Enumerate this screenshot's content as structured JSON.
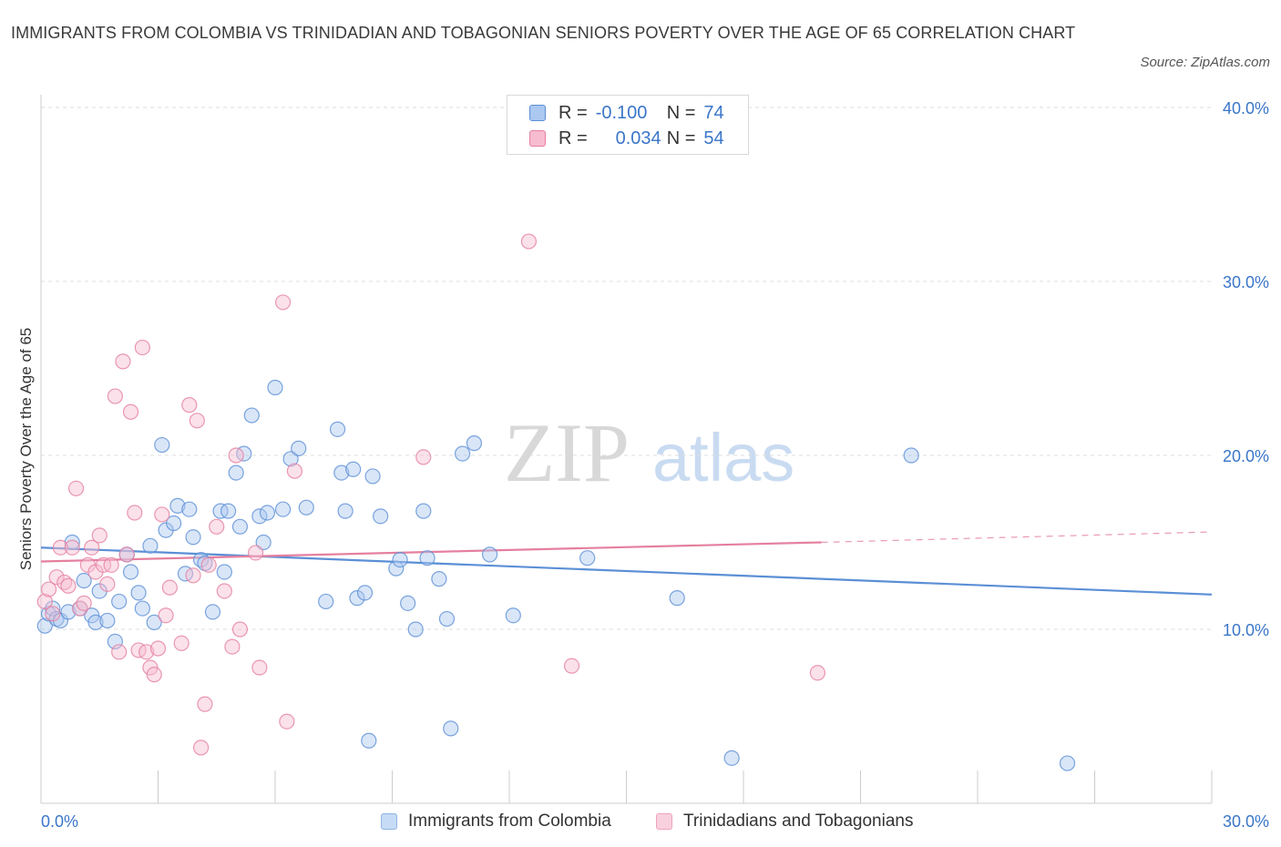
{
  "title": "IMMIGRANTS FROM COLOMBIA VS TRINIDADIAN AND TOBAGONIAN SENIORS POVERTY OVER THE AGE OF 65 CORRELATION CHART",
  "source": "Source: ZipAtlas.com",
  "watermark": {
    "zip": "ZIP",
    "atlas": "atlas"
  },
  "legend": {
    "r_label": "R =",
    "n_label": "N =",
    "series": [
      {
        "name": "Immigrants from Colombia",
        "r": "-0.100",
        "n": "74",
        "fill": "#aac8f0",
        "stroke": "#5b8fd6"
      },
      {
        "name": "Trinidadians and Tobagonians",
        "r": "0.034",
        "n": "54",
        "fill": "#f7bcd0",
        "stroke": "#e5809f"
      }
    ]
  },
  "chart_data": {
    "type": "scatter",
    "title": "IMMIGRANTS FROM COLOMBIA VS TRINIDADIAN AND TOBAGONIAN SENIORS POVERTY OVER THE AGE OF 65 CORRELATION CHART",
    "xlabel": "",
    "ylabel": "Seniors Poverty Over the Age of 65",
    "xlim": [
      0,
      30
    ],
    "ylim": [
      0,
      40
    ],
    "x_tick_labels": [
      "0.0%",
      "30.0%"
    ],
    "y_ticks": [
      10,
      20,
      30,
      40
    ],
    "y_tick_labels": [
      "10.0%",
      "20.0%",
      "30.0%",
      "40.0%"
    ],
    "grid": true,
    "legend_position": "top-center",
    "series": [
      {
        "name": "Immigrants from Colombia",
        "color": "#5b8fd6",
        "trend": {
          "x": [
            0,
            30
          ],
          "y": [
            14.7,
            12.0
          ]
        },
        "points": [
          [
            0.1,
            10.2
          ],
          [
            0.2,
            10.9
          ],
          [
            0.3,
            11.2
          ],
          [
            0.4,
            10.6
          ],
          [
            0.5,
            10.5
          ],
          [
            0.7,
            11.0
          ],
          [
            0.8,
            15.0
          ],
          [
            1.0,
            11.2
          ],
          [
            1.1,
            12.8
          ],
          [
            1.3,
            10.8
          ],
          [
            1.4,
            10.4
          ],
          [
            1.5,
            12.2
          ],
          [
            1.7,
            10.5
          ],
          [
            1.9,
            9.3
          ],
          [
            2.0,
            11.6
          ],
          [
            2.2,
            14.3
          ],
          [
            2.3,
            13.3
          ],
          [
            2.5,
            12.1
          ],
          [
            2.6,
            11.2
          ],
          [
            2.8,
            14.8
          ],
          [
            2.9,
            10.4
          ],
          [
            3.1,
            20.6
          ],
          [
            3.2,
            15.7
          ],
          [
            3.4,
            16.1
          ],
          [
            3.5,
            17.1
          ],
          [
            3.7,
            13.2
          ],
          [
            3.8,
            16.9
          ],
          [
            3.9,
            15.3
          ],
          [
            4.1,
            14.0
          ],
          [
            4.2,
            13.8
          ],
          [
            4.4,
            11.0
          ],
          [
            4.6,
            16.8
          ],
          [
            4.7,
            13.3
          ],
          [
            4.8,
            16.8
          ],
          [
            5.0,
            19.0
          ],
          [
            5.1,
            15.9
          ],
          [
            5.2,
            20.1
          ],
          [
            5.4,
            22.3
          ],
          [
            5.6,
            16.5
          ],
          [
            5.7,
            15.0
          ],
          [
            5.8,
            16.7
          ],
          [
            6.0,
            23.9
          ],
          [
            6.2,
            16.9
          ],
          [
            6.4,
            19.8
          ],
          [
            6.6,
            20.4
          ],
          [
            6.8,
            17.0
          ],
          [
            7.3,
            11.6
          ],
          [
            7.6,
            21.5
          ],
          [
            7.7,
            19.0
          ],
          [
            7.8,
            16.8
          ],
          [
            8.0,
            19.2
          ],
          [
            8.1,
            11.8
          ],
          [
            8.3,
            12.1
          ],
          [
            8.4,
            3.6
          ],
          [
            8.5,
            18.8
          ],
          [
            8.7,
            16.5
          ],
          [
            9.1,
            13.5
          ],
          [
            9.2,
            14.0
          ],
          [
            9.4,
            11.5
          ],
          [
            9.6,
            10.0
          ],
          [
            9.8,
            16.8
          ],
          [
            9.9,
            14.1
          ],
          [
            10.2,
            12.9
          ],
          [
            10.4,
            10.6
          ],
          [
            10.5,
            4.3
          ],
          [
            10.8,
            20.1
          ],
          [
            11.1,
            20.7
          ],
          [
            11.5,
            14.3
          ],
          [
            12.1,
            10.8
          ],
          [
            14.0,
            14.1
          ],
          [
            16.3,
            11.8
          ],
          [
            17.7,
            2.6
          ],
          [
            22.3,
            20.0
          ],
          [
            26.3,
            2.3
          ]
        ]
      },
      {
        "name": "Trinidadians and Tobagonians",
        "color": "#e5809f",
        "trend": {
          "x": [
            0,
            20
          ],
          "y": [
            13.9,
            15.0
          ]
        },
        "trend_extension": {
          "x": [
            20,
            30
          ],
          "y": [
            15.0,
            15.6
          ]
        },
        "points": [
          [
            0.1,
            11.6
          ],
          [
            0.2,
            12.3
          ],
          [
            0.3,
            10.9
          ],
          [
            0.4,
            13.0
          ],
          [
            0.5,
            14.7
          ],
          [
            0.6,
            12.7
          ],
          [
            0.7,
            12.5
          ],
          [
            0.8,
            14.7
          ],
          [
            0.9,
            18.1
          ],
          [
            1.0,
            11.2
          ],
          [
            1.1,
            11.5
          ],
          [
            1.2,
            13.7
          ],
          [
            1.3,
            14.7
          ],
          [
            1.4,
            13.3
          ],
          [
            1.5,
            15.4
          ],
          [
            1.6,
            13.7
          ],
          [
            1.7,
            12.6
          ],
          [
            1.8,
            13.7
          ],
          [
            1.9,
            23.4
          ],
          [
            2.0,
            8.7
          ],
          [
            2.1,
            25.4
          ],
          [
            2.2,
            14.3
          ],
          [
            2.3,
            22.5
          ],
          [
            2.4,
            16.7
          ],
          [
            2.5,
            8.8
          ],
          [
            2.6,
            26.2
          ],
          [
            2.7,
            8.7
          ],
          [
            2.8,
            7.8
          ],
          [
            2.9,
            7.4
          ],
          [
            3.0,
            8.9
          ],
          [
            3.1,
            16.6
          ],
          [
            3.2,
            10.8
          ],
          [
            3.3,
            12.4
          ],
          [
            3.6,
            9.2
          ],
          [
            3.8,
            22.9
          ],
          [
            3.9,
            13.1
          ],
          [
            4.0,
            22.0
          ],
          [
            4.1,
            3.2
          ],
          [
            4.2,
            5.7
          ],
          [
            4.3,
            13.7
          ],
          [
            4.5,
            15.9
          ],
          [
            4.7,
            12.2
          ],
          [
            4.9,
            9.0
          ],
          [
            5.0,
            20.0
          ],
          [
            5.1,
            10.0
          ],
          [
            5.5,
            14.4
          ],
          [
            5.6,
            7.8
          ],
          [
            6.2,
            28.8
          ],
          [
            6.3,
            4.7
          ],
          [
            6.5,
            19.1
          ],
          [
            9.8,
            19.9
          ],
          [
            12.5,
            32.3
          ],
          [
            13.6,
            7.9
          ],
          [
            19.9,
            7.5
          ]
        ]
      }
    ]
  }
}
